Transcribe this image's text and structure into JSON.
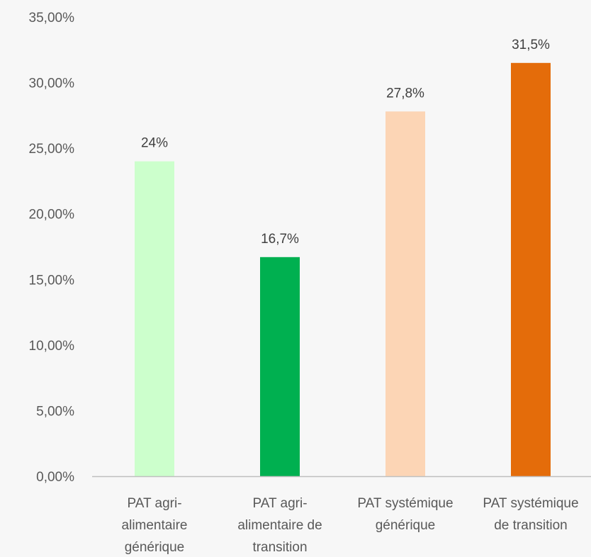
{
  "chart_data": {
    "type": "bar",
    "categories": [
      [
        "PAT agri-",
        "alimentaire",
        "générique"
      ],
      [
        "PAT agri-",
        "alimentaire de",
        "transition"
      ],
      [
        "PAT systémique",
        "générique"
      ],
      [
        "PAT systémique",
        "de transition"
      ]
    ],
    "values": [
      24,
      16.7,
      27.8,
      31.5
    ],
    "data_labels": [
      "24%",
      "16,7%",
      "27,8%",
      "31,5%"
    ],
    "bar_colors": [
      "#ccffcc",
      "#00b050",
      "#fcd5b5",
      "#e46c0a"
    ],
    "ylim": [
      0,
      35
    ],
    "yticks": [
      0,
      5,
      10,
      15,
      20,
      25,
      30,
      35
    ],
    "ytick_labels": [
      "0,00%",
      "5,00%",
      "10,00%",
      "15,00%",
      "20,00%",
      "25,00%",
      "30,00%",
      "35,00%"
    ],
    "title": "",
    "xlabel": "",
    "ylabel": "",
    "grid": false,
    "legend": "none"
  }
}
